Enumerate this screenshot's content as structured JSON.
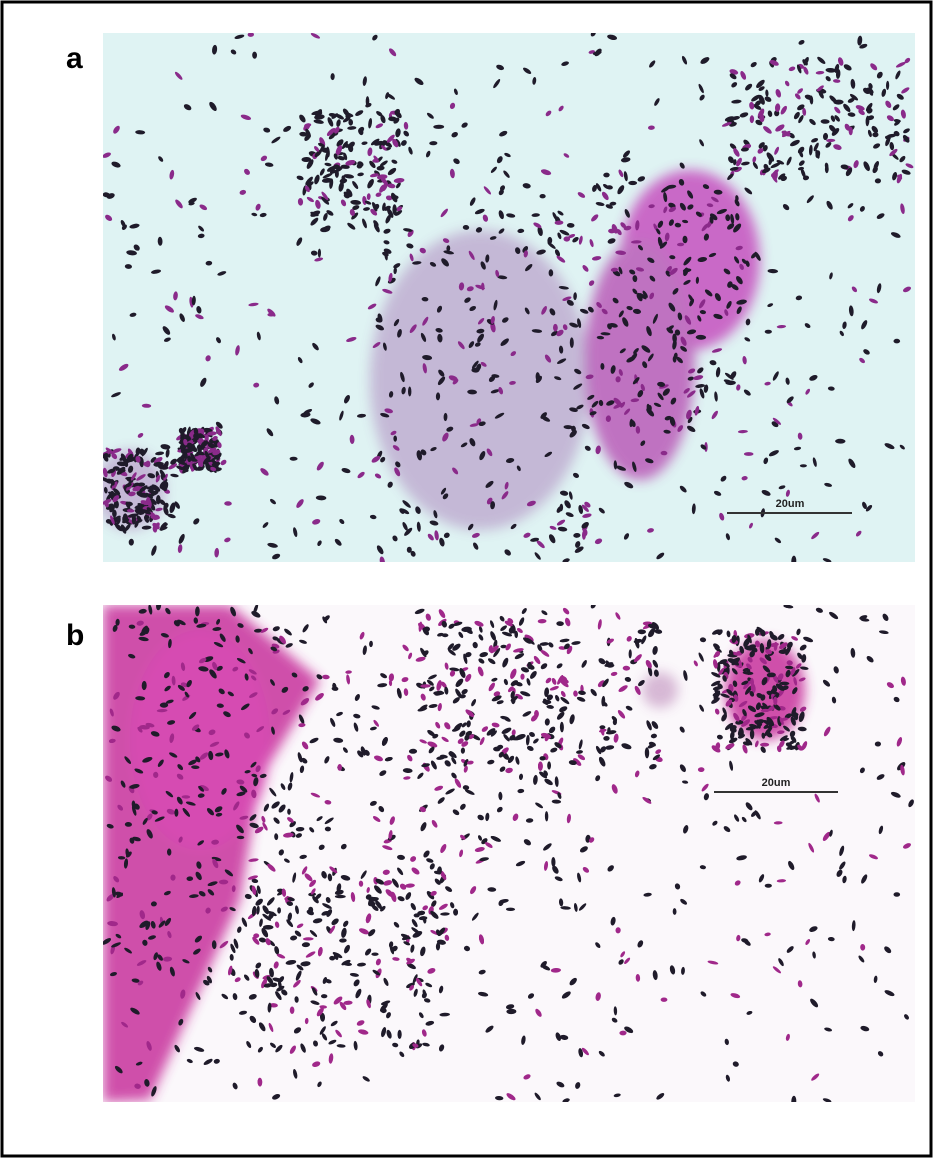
{
  "panels": [
    {
      "label": "a",
      "scale_bar": "20um"
    },
    {
      "label": "b",
      "scale_bar": "20um"
    }
  ]
}
